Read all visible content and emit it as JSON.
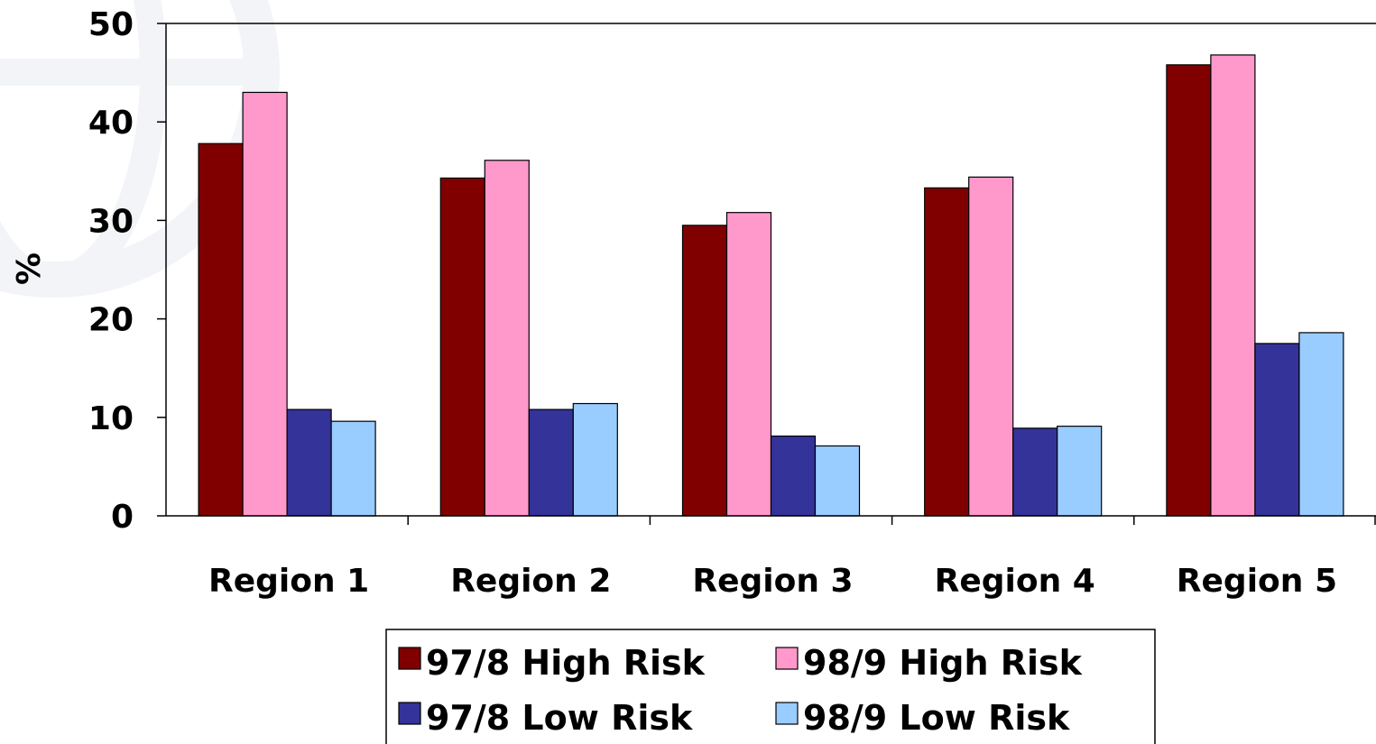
{
  "chart_data": {
    "type": "bar",
    "categories": [
      "Region 1",
      "Region 2",
      "Region 3",
      "Region 4",
      "Region 5"
    ],
    "series": [
      {
        "name": "97/8 High Risk",
        "values": [
          37.8,
          34.3,
          29.5,
          33.3,
          45.8
        ],
        "color": "#800000"
      },
      {
        "name": "98/9 High Risk",
        "values": [
          43.0,
          36.1,
          30.8,
          34.4,
          46.8
        ],
        "color": "#ff99cc"
      },
      {
        "name": "97/8 Low Risk",
        "values": [
          10.8,
          10.8,
          8.1,
          8.9,
          17.5
        ],
        "color": "#333399"
      },
      {
        "name": "98/9 Low Risk",
        "values": [
          9.6,
          11.4,
          7.1,
          9.1,
          18.6
        ],
        "color": "#99ccff"
      }
    ],
    "xlabel": "",
    "ylabel": "%",
    "ylim": [
      0,
      50
    ],
    "yticks": [
      "0",
      "10",
      "20",
      "30",
      "40",
      "50"
    ],
    "grid": false,
    "legend_position": "bottom"
  }
}
